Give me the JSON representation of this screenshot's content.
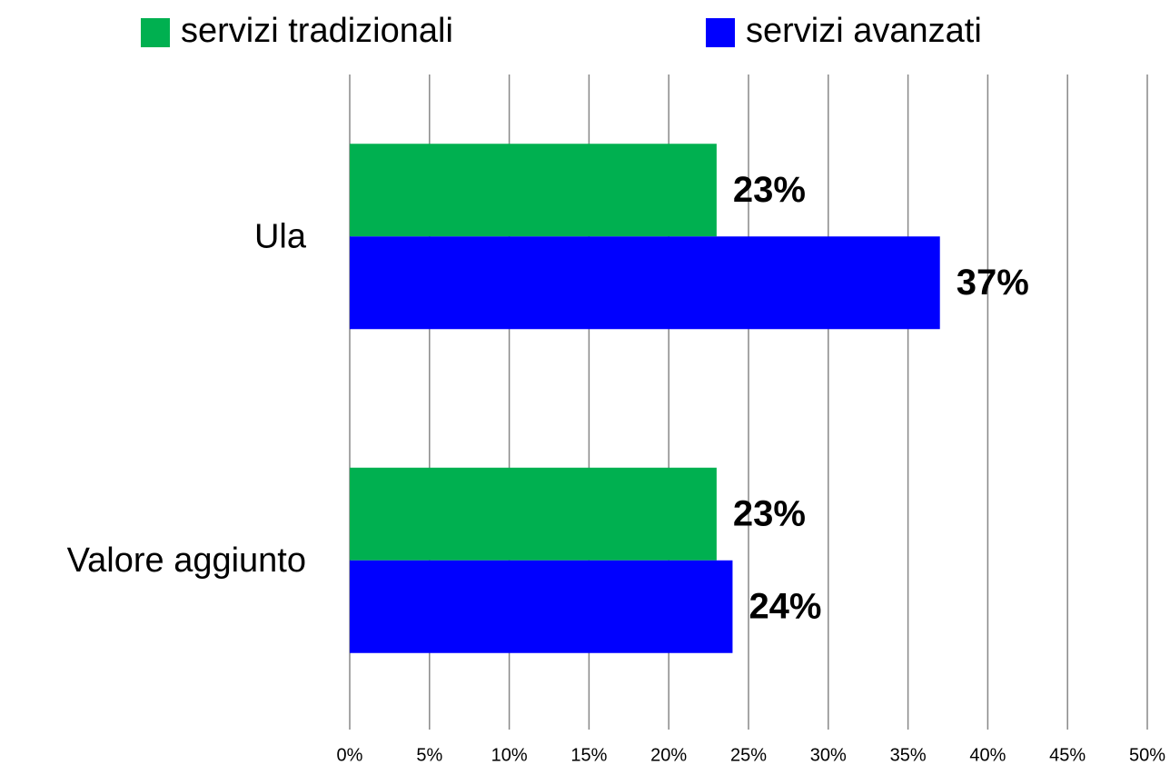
{
  "chart_data": {
    "type": "hbar",
    "categories": [
      "Ula",
      "Valore aggiunto"
    ],
    "series": [
      {
        "name": "servizi tradizionali",
        "color": "#00b050",
        "values": [
          23,
          23
        ],
        "value_labels": [
          "23%",
          "23%"
        ]
      },
      {
        "name": "servizi avanzati",
        "color": "#0000ff",
        "values": [
          37,
          24
        ],
        "value_labels": [
          "37%",
          "24%"
        ]
      }
    ],
    "xlim": [
      0,
      50
    ],
    "xticks": [
      {
        "value": 0,
        "label": "0%"
      },
      {
        "value": 5,
        "label": "5%"
      },
      {
        "value": 10,
        "label": "10%"
      },
      {
        "value": 15,
        "label": "15%"
      },
      {
        "value": 20,
        "label": "20%"
      },
      {
        "value": 25,
        "label": "25%"
      },
      {
        "value": 30,
        "label": "30%"
      },
      {
        "value": 35,
        "label": "35%"
      },
      {
        "value": 40,
        "label": "40%"
      },
      {
        "value": 45,
        "label": "45%"
      },
      {
        "value": 50,
        "label": "50%"
      }
    ],
    "grid": true
  }
}
